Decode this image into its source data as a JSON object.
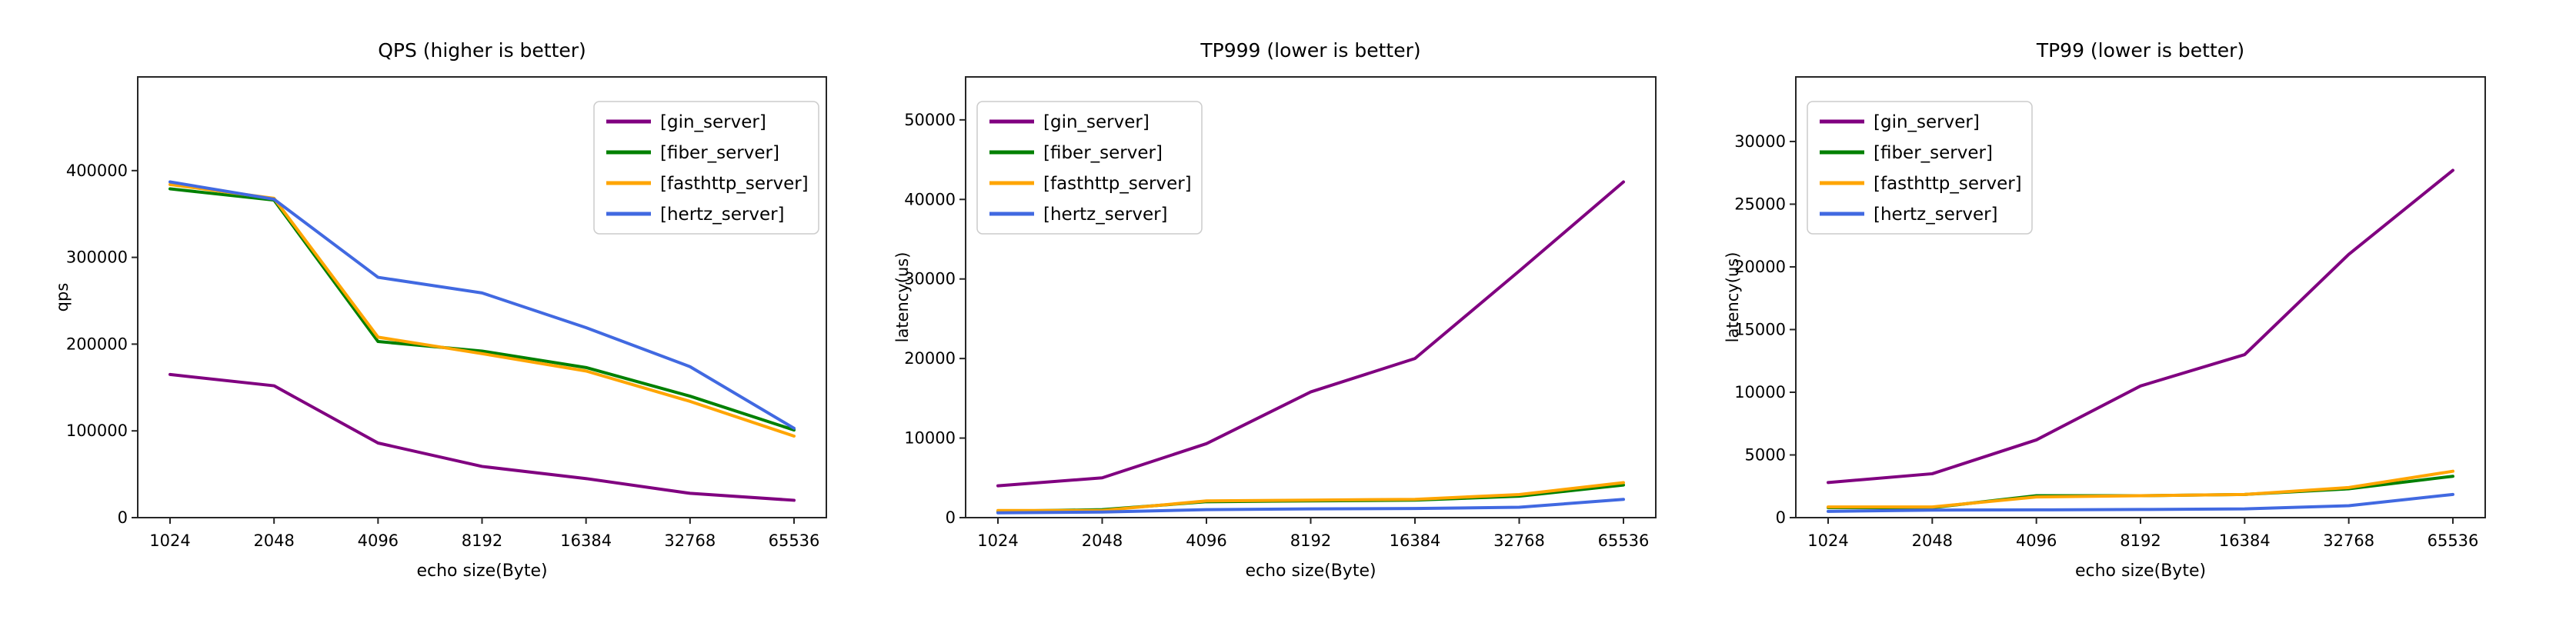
{
  "figure": {
    "background": "#ffffff",
    "spine_color": "#262626",
    "legend_border_color": "#cccccc",
    "legend_background": "#ffffff"
  },
  "chart_data": [
    {
      "type": "line",
      "title": "QPS (higher is better)",
      "xlabel": "echo size(Byte)",
      "ylabel": "qps",
      "categories": [
        "1024",
        "2048",
        "4096",
        "8192",
        "16384",
        "32768",
        "65536"
      ],
      "yticks": [
        0,
        100000,
        200000,
        300000,
        400000
      ],
      "ylim": [
        0,
        508000
      ],
      "grid": false,
      "legend_position": "upper-right",
      "series": [
        {
          "name": "[gin_server]",
          "color": "#800080",
          "values": [
            165000,
            152000,
            86000,
            59000,
            45000,
            28000,
            20000
          ]
        },
        {
          "name": "[fiber_server]",
          "color": "#008000",
          "values": [
            379000,
            366000,
            203000,
            192000,
            173000,
            140000,
            101000
          ]
        },
        {
          "name": "[fasthttp_server]",
          "color": "#ffa500",
          "values": [
            384000,
            368000,
            208000,
            189000,
            169000,
            134000,
            94000
          ]
        },
        {
          "name": "[hertz_server]",
          "color": "#4169e1",
          "values": [
            387000,
            367000,
            277000,
            259000,
            219000,
            174000,
            103000
          ]
        }
      ]
    },
    {
      "type": "line",
      "title": "TP999 (lower is better)",
      "xlabel": "echo size(Byte)",
      "ylabel": "latency(us)",
      "categories": [
        "1024",
        "2048",
        "4096",
        "8192",
        "16384",
        "32768",
        "65536"
      ],
      "yticks": [
        0,
        10000,
        20000,
        30000,
        40000,
        50000
      ],
      "ylim": [
        0,
        55400
      ],
      "grid": false,
      "legend_position": "upper-left",
      "series": [
        {
          "name": "[gin_server]",
          "color": "#800080",
          "values": [
            4000,
            5000,
            9300,
            15800,
            20000,
            31000,
            42200
          ]
        },
        {
          "name": "[fiber_server]",
          "color": "#008000",
          "values": [
            800,
            1000,
            2000,
            2100,
            2200,
            2700,
            4100
          ]
        },
        {
          "name": "[fasthttp_server]",
          "color": "#ffa500",
          "values": [
            900,
            900,
            2100,
            2200,
            2300,
            2900,
            4400
          ]
        },
        {
          "name": "[hertz_server]",
          "color": "#4169e1",
          "values": [
            600,
            700,
            1000,
            1100,
            1150,
            1300,
            2300
          ]
        }
      ]
    },
    {
      "type": "line",
      "title": "TP99 (lower is better)",
      "xlabel": "echo size(Byte)",
      "ylabel": "latency(us)",
      "categories": [
        "1024",
        "2048",
        "4096",
        "8192",
        "16384",
        "32768",
        "65536"
      ],
      "yticks": [
        0,
        5000,
        10000,
        15000,
        20000,
        25000,
        30000
      ],
      "ylim": [
        0,
        35150
      ],
      "grid": false,
      "legend_position": "upper-left",
      "series": [
        {
          "name": "[gin_server]",
          "color": "#800080",
          "values": [
            2800,
            3500,
            6200,
            10500,
            13000,
            21000,
            27700
          ]
        },
        {
          "name": "[fiber_server]",
          "color": "#008000",
          "values": [
            800,
            800,
            1750,
            1750,
            1850,
            2300,
            3300
          ]
        },
        {
          "name": "[fasthttp_server]",
          "color": "#ffa500",
          "values": [
            850,
            850,
            1650,
            1750,
            1850,
            2400,
            3700
          ]
        },
        {
          "name": "[hertz_server]",
          "color": "#4169e1",
          "values": [
            500,
            600,
            620,
            650,
            700,
            950,
            1850
          ]
        }
      ]
    }
  ]
}
